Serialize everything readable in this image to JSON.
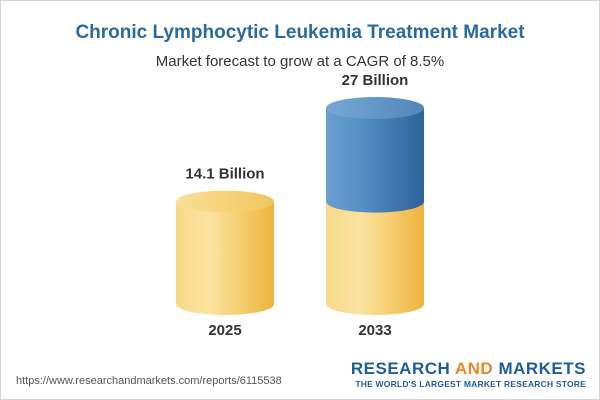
{
  "title": "Chronic Lymphocytic Leukemia Treatment Market",
  "subtitle": "Market forecast to grow at a CAGR of 8.5%",
  "source_url": "https://www.researchandmarkets.com/reports/6115538",
  "brand": {
    "part1": "RESEARCH ",
    "part2": "AND",
    "part3": " MARKETS",
    "tagline": "THE WORLD'S LARGEST MARKET RESEARCH STORE"
  },
  "colors": {
    "title": "#2b6a9e",
    "base_series": "#f4c75a",
    "growth_series": "#4a86bd",
    "brand_blue": "#1f5f96",
    "brand_orange": "#e8872b"
  },
  "chart_data": {
    "type": "bar",
    "categories": [
      "2025",
      "2033"
    ],
    "values": [
      14.1,
      27
    ],
    "value_labels": [
      "14.1 Billion",
      "27 Billion"
    ],
    "base_value": 14.1,
    "unit": "Billion",
    "cagr": "8.5%"
  }
}
